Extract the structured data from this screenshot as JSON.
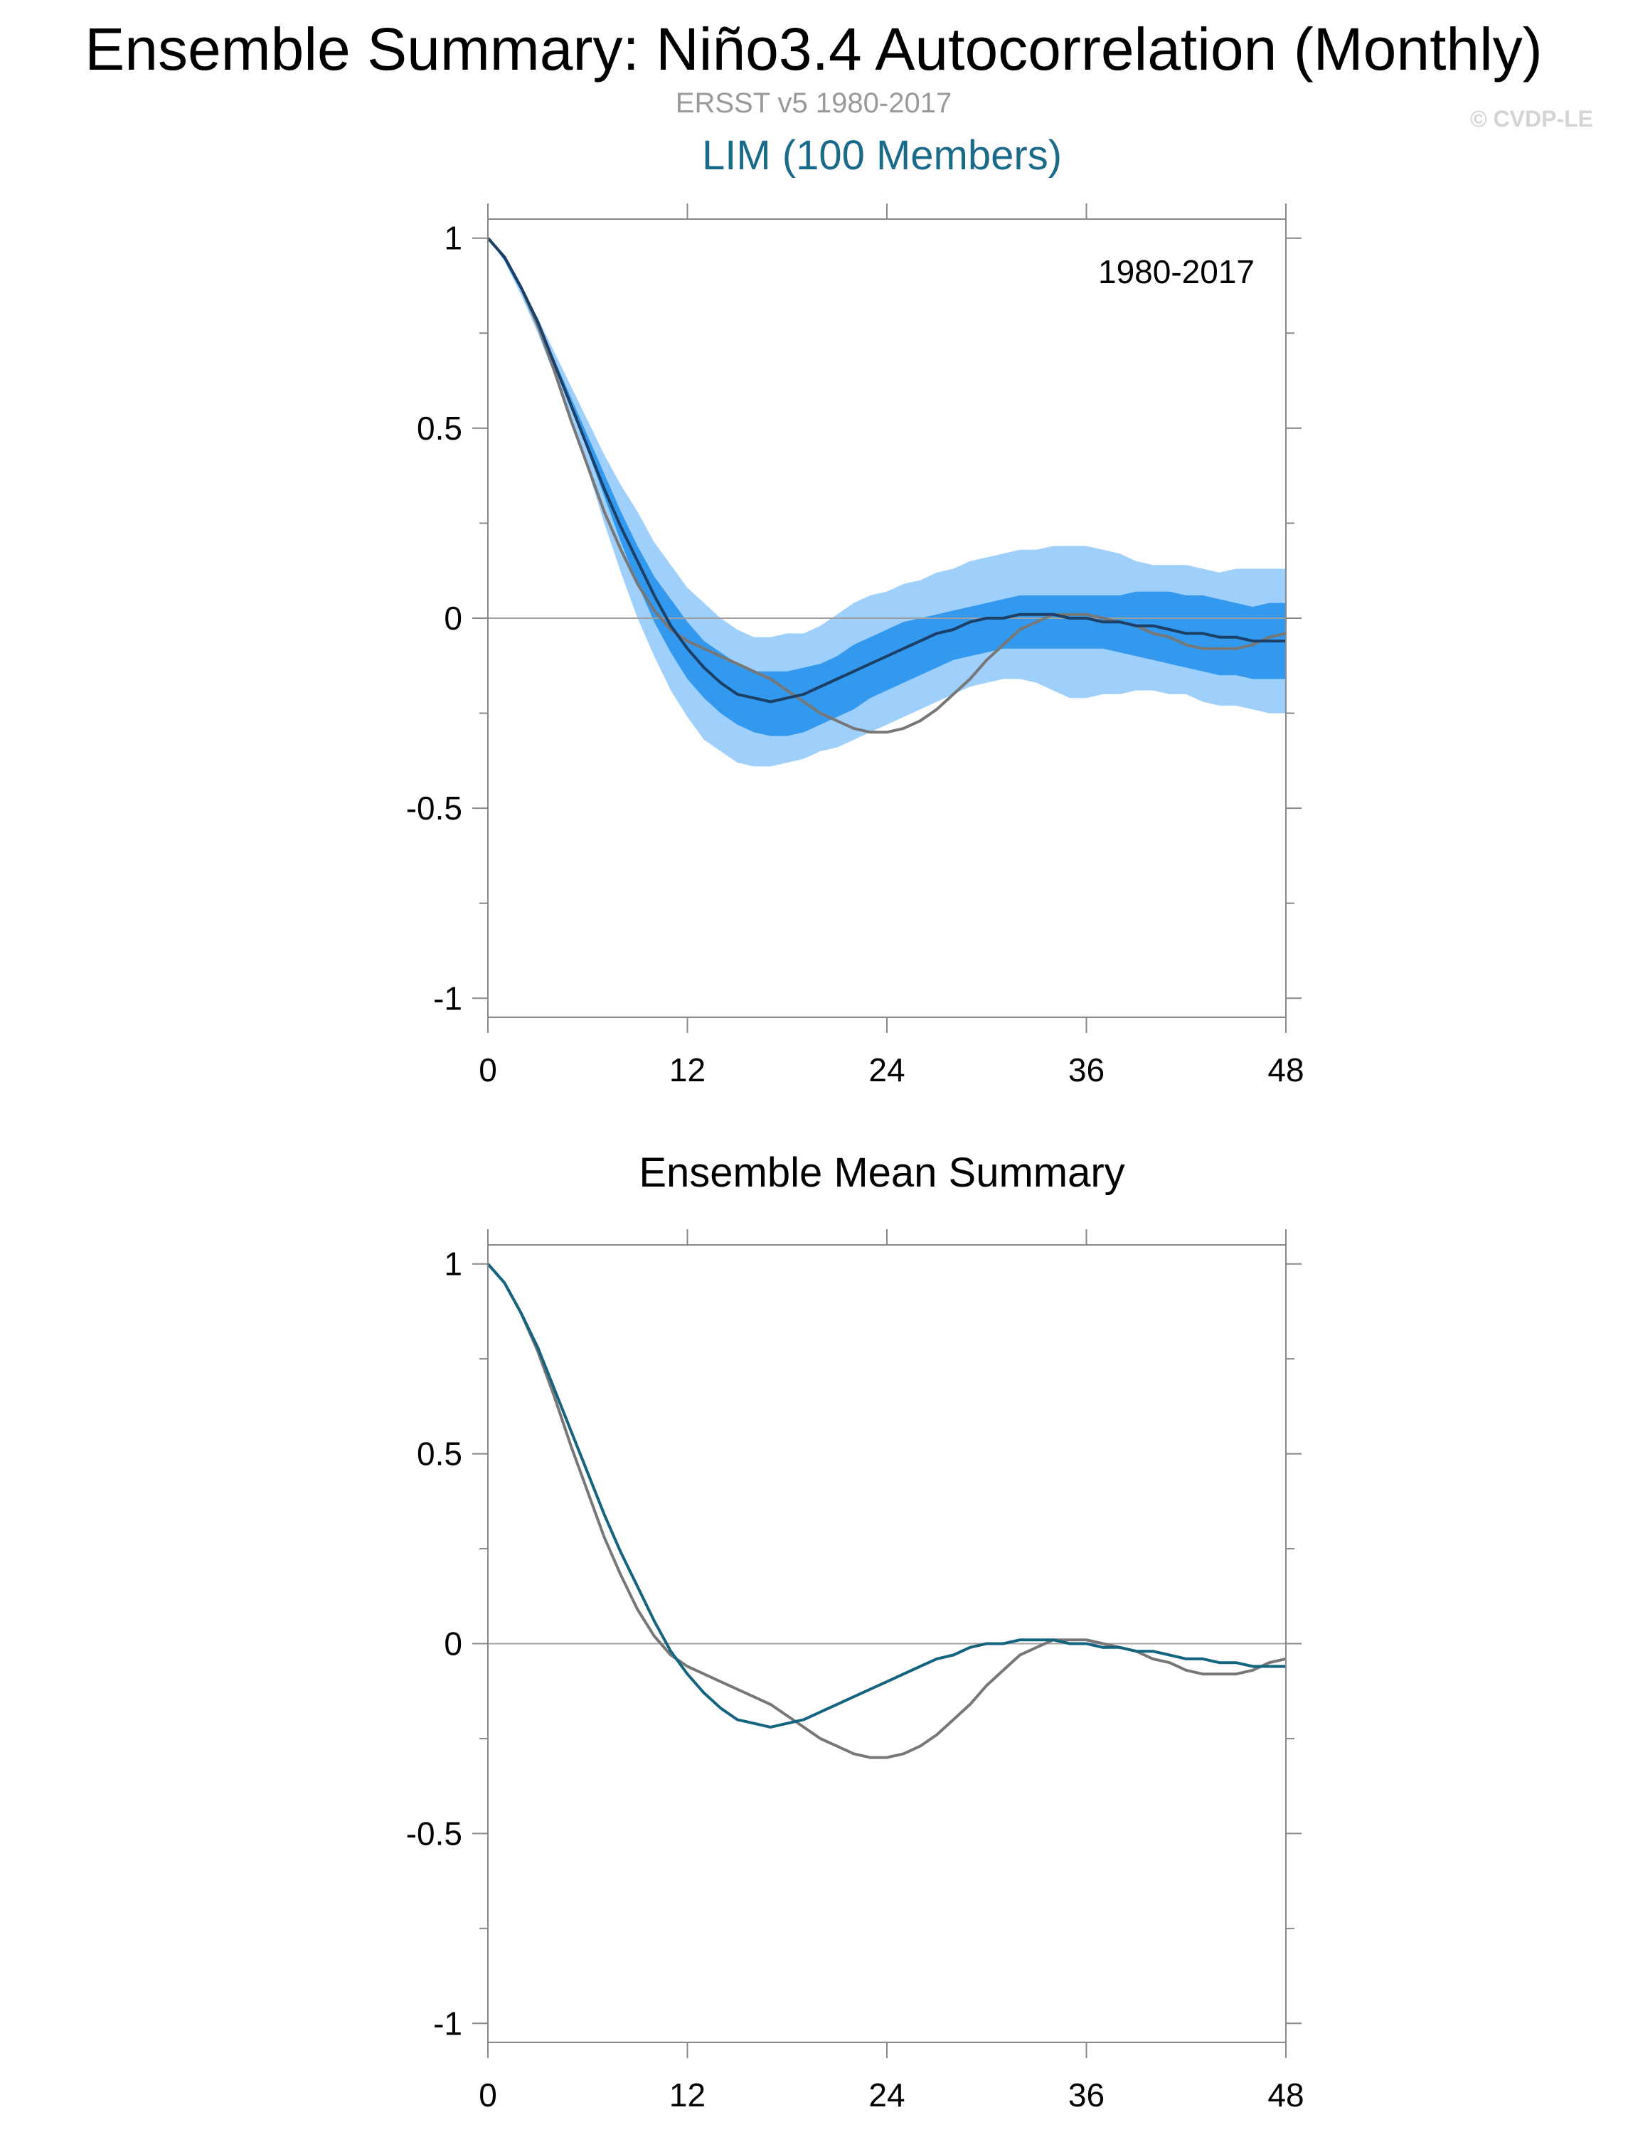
{
  "header": {
    "title": "Ensemble Summary: Niño3.4 Autocorrelation (Monthly)",
    "subtitle": "ERSST v5 1980-2017",
    "credit": "© CVDP-LE",
    "ensemble_name": "LIM (100 Members)"
  },
  "colors": {
    "outer_band": "#9fcffb",
    "inner_band": "#3399ee",
    "ensemble_mean_top": "#1b3f66",
    "ensemble_mean_bottom": "#14647f",
    "observations": "#777777",
    "zero_line": "#a0a0a0",
    "axis": "#888888"
  },
  "chart_data": [
    {
      "type": "area",
      "title": "",
      "annotation": "1980-2017",
      "xlim": [
        0,
        48
      ],
      "ylim": [
        -1.05,
        1.05
      ],
      "x_ticks": [
        0,
        12,
        24,
        36,
        48
      ],
      "x_tick_labels": [
        "0",
        "12",
        "24",
        "36",
        "48"
      ],
      "y_ticks": [
        1,
        0.5,
        0,
        -0.5,
        -1
      ],
      "y_tick_labels": [
        "1",
        "0.5",
        "0",
        "-0.5",
        "-1"
      ],
      "x": [
        0,
        1,
        2,
        3,
        4,
        5,
        6,
        7,
        8,
        9,
        10,
        11,
        12,
        13,
        14,
        15,
        16,
        17,
        18,
        19,
        20,
        21,
        22,
        23,
        24,
        25,
        26,
        27,
        28,
        29,
        30,
        31,
        32,
        33,
        34,
        35,
        36,
        37,
        38,
        39,
        40,
        41,
        42,
        43,
        44,
        45,
        46,
        47,
        48
      ],
      "series": [
        {
          "role": "outer_band_upper",
          "values": [
            1,
            0.95,
            0.87,
            0.79,
            0.7,
            0.61,
            0.52,
            0.43,
            0.35,
            0.28,
            0.2,
            0.14,
            0.08,
            0.04,
            0.0,
            -0.03,
            -0.05,
            -0.05,
            -0.04,
            -0.04,
            -0.02,
            0.01,
            0.04,
            0.06,
            0.07,
            0.09,
            0.1,
            0.12,
            0.13,
            0.15,
            0.16,
            0.17,
            0.18,
            0.18,
            0.19,
            0.19,
            0.19,
            0.18,
            0.17,
            0.15,
            0.14,
            0.14,
            0.14,
            0.13,
            0.12,
            0.13,
            0.13,
            0.13,
            0.13
          ]
        },
        {
          "role": "outer_band_lower",
          "values": [
            1,
            0.94,
            0.85,
            0.75,
            0.64,
            0.52,
            0.39,
            0.25,
            0.12,
            0.0,
            -0.1,
            -0.19,
            -0.26,
            -0.32,
            -0.35,
            -0.38,
            -0.39,
            -0.39,
            -0.38,
            -0.37,
            -0.35,
            -0.34,
            -0.32,
            -0.3,
            -0.28,
            -0.26,
            -0.24,
            -0.22,
            -0.2,
            -0.18,
            -0.17,
            -0.16,
            -0.16,
            -0.17,
            -0.19,
            -0.21,
            -0.21,
            -0.2,
            -0.2,
            -0.19,
            -0.19,
            -0.2,
            -0.2,
            -0.22,
            -0.23,
            -0.23,
            -0.24,
            -0.25,
            -0.25
          ]
        },
        {
          "role": "inner_band_upper",
          "values": [
            1,
            0.95,
            0.87,
            0.78,
            0.68,
            0.58,
            0.48,
            0.38,
            0.28,
            0.19,
            0.11,
            0.05,
            -0.01,
            -0.06,
            -0.09,
            -0.12,
            -0.14,
            -0.14,
            -0.14,
            -0.13,
            -0.12,
            -0.1,
            -0.07,
            -0.05,
            -0.03,
            -0.01,
            0.0,
            0.01,
            0.02,
            0.03,
            0.04,
            0.05,
            0.06,
            0.06,
            0.06,
            0.06,
            0.06,
            0.06,
            0.06,
            0.07,
            0.07,
            0.07,
            0.06,
            0.06,
            0.05,
            0.04,
            0.03,
            0.04,
            0.04
          ]
        },
        {
          "role": "inner_band_lower",
          "values": [
            1,
            0.94,
            0.86,
            0.76,
            0.66,
            0.55,
            0.44,
            0.32,
            0.2,
            0.09,
            -0.01,
            -0.09,
            -0.16,
            -0.21,
            -0.25,
            -0.28,
            -0.3,
            -0.31,
            -0.31,
            -0.3,
            -0.28,
            -0.26,
            -0.24,
            -0.21,
            -0.19,
            -0.17,
            -0.15,
            -0.13,
            -0.11,
            -0.1,
            -0.09,
            -0.08,
            -0.08,
            -0.08,
            -0.08,
            -0.08,
            -0.08,
            -0.08,
            -0.09,
            -0.1,
            -0.11,
            -0.12,
            -0.13,
            -0.14,
            -0.15,
            -0.15,
            -0.16,
            -0.16,
            -0.16
          ]
        },
        {
          "role": "ensemble_mean",
          "values": [
            1,
            0.95,
            0.87,
            0.78,
            0.67,
            0.56,
            0.45,
            0.34,
            0.24,
            0.15,
            0.06,
            -0.02,
            -0.08,
            -0.13,
            -0.17,
            -0.2,
            -0.21,
            -0.22,
            -0.21,
            -0.2,
            -0.18,
            -0.16,
            -0.14,
            -0.12,
            -0.1,
            -0.08,
            -0.06,
            -0.04,
            -0.03,
            -0.01,
            0.0,
            0.0,
            0.01,
            0.01,
            0.01,
            0.0,
            0.0,
            -0.01,
            -0.01,
            -0.02,
            -0.02,
            -0.03,
            -0.04,
            -0.04,
            -0.05,
            -0.05,
            -0.06,
            -0.06,
            -0.06
          ]
        },
        {
          "role": "observations",
          "values": [
            1,
            0.95,
            0.87,
            0.77,
            0.65,
            0.52,
            0.4,
            0.28,
            0.18,
            0.09,
            0.02,
            -0.03,
            -0.06,
            -0.08,
            -0.1,
            -0.12,
            -0.14,
            -0.16,
            -0.19,
            -0.22,
            -0.25,
            -0.27,
            -0.29,
            -0.3,
            -0.3,
            -0.29,
            -0.27,
            -0.24,
            -0.2,
            -0.16,
            -0.11,
            -0.07,
            -0.03,
            -0.01,
            0.01,
            0.01,
            0.01,
            0.0,
            -0.01,
            -0.02,
            -0.04,
            -0.05,
            -0.07,
            -0.08,
            -0.08,
            -0.08,
            -0.07,
            -0.05,
            -0.04
          ]
        }
      ]
    },
    {
      "type": "line",
      "title": "Ensemble Mean Summary",
      "xlim": [
        0,
        48
      ],
      "ylim": [
        -1.05,
        1.05
      ],
      "x_ticks": [
        0,
        12,
        24,
        36,
        48
      ],
      "x_tick_labels": [
        "0",
        "12",
        "24",
        "36",
        "48"
      ],
      "y_ticks": [
        1,
        0.5,
        0,
        -0.5,
        -1
      ],
      "y_tick_labels": [
        "1",
        "0.5",
        "0",
        "-0.5",
        "-1"
      ],
      "x": [
        0,
        1,
        2,
        3,
        4,
        5,
        6,
        7,
        8,
        9,
        10,
        11,
        12,
        13,
        14,
        15,
        16,
        17,
        18,
        19,
        20,
        21,
        22,
        23,
        24,
        25,
        26,
        27,
        28,
        29,
        30,
        31,
        32,
        33,
        34,
        35,
        36,
        37,
        38,
        39,
        40,
        41,
        42,
        43,
        44,
        45,
        46,
        47,
        48
      ],
      "series": [
        {
          "role": "ensemble_mean",
          "values": [
            1,
            0.95,
            0.87,
            0.78,
            0.67,
            0.56,
            0.45,
            0.34,
            0.24,
            0.15,
            0.06,
            -0.02,
            -0.08,
            -0.13,
            -0.17,
            -0.2,
            -0.21,
            -0.22,
            -0.21,
            -0.2,
            -0.18,
            -0.16,
            -0.14,
            -0.12,
            -0.1,
            -0.08,
            -0.06,
            -0.04,
            -0.03,
            -0.01,
            0.0,
            0.0,
            0.01,
            0.01,
            0.01,
            0.0,
            0.0,
            -0.01,
            -0.01,
            -0.02,
            -0.02,
            -0.03,
            -0.04,
            -0.04,
            -0.05,
            -0.05,
            -0.06,
            -0.06,
            -0.06
          ]
        },
        {
          "role": "observations",
          "values": [
            1,
            0.95,
            0.87,
            0.77,
            0.65,
            0.52,
            0.4,
            0.28,
            0.18,
            0.09,
            0.02,
            -0.03,
            -0.06,
            -0.08,
            -0.1,
            -0.12,
            -0.14,
            -0.16,
            -0.19,
            -0.22,
            -0.25,
            -0.27,
            -0.29,
            -0.3,
            -0.3,
            -0.29,
            -0.27,
            -0.24,
            -0.2,
            -0.16,
            -0.11,
            -0.07,
            -0.03,
            -0.01,
            0.01,
            0.01,
            0.01,
            0.0,
            -0.01,
            -0.02,
            -0.04,
            -0.05,
            -0.07,
            -0.08,
            -0.08,
            -0.08,
            -0.07,
            -0.05,
            -0.04
          ]
        }
      ]
    }
  ]
}
